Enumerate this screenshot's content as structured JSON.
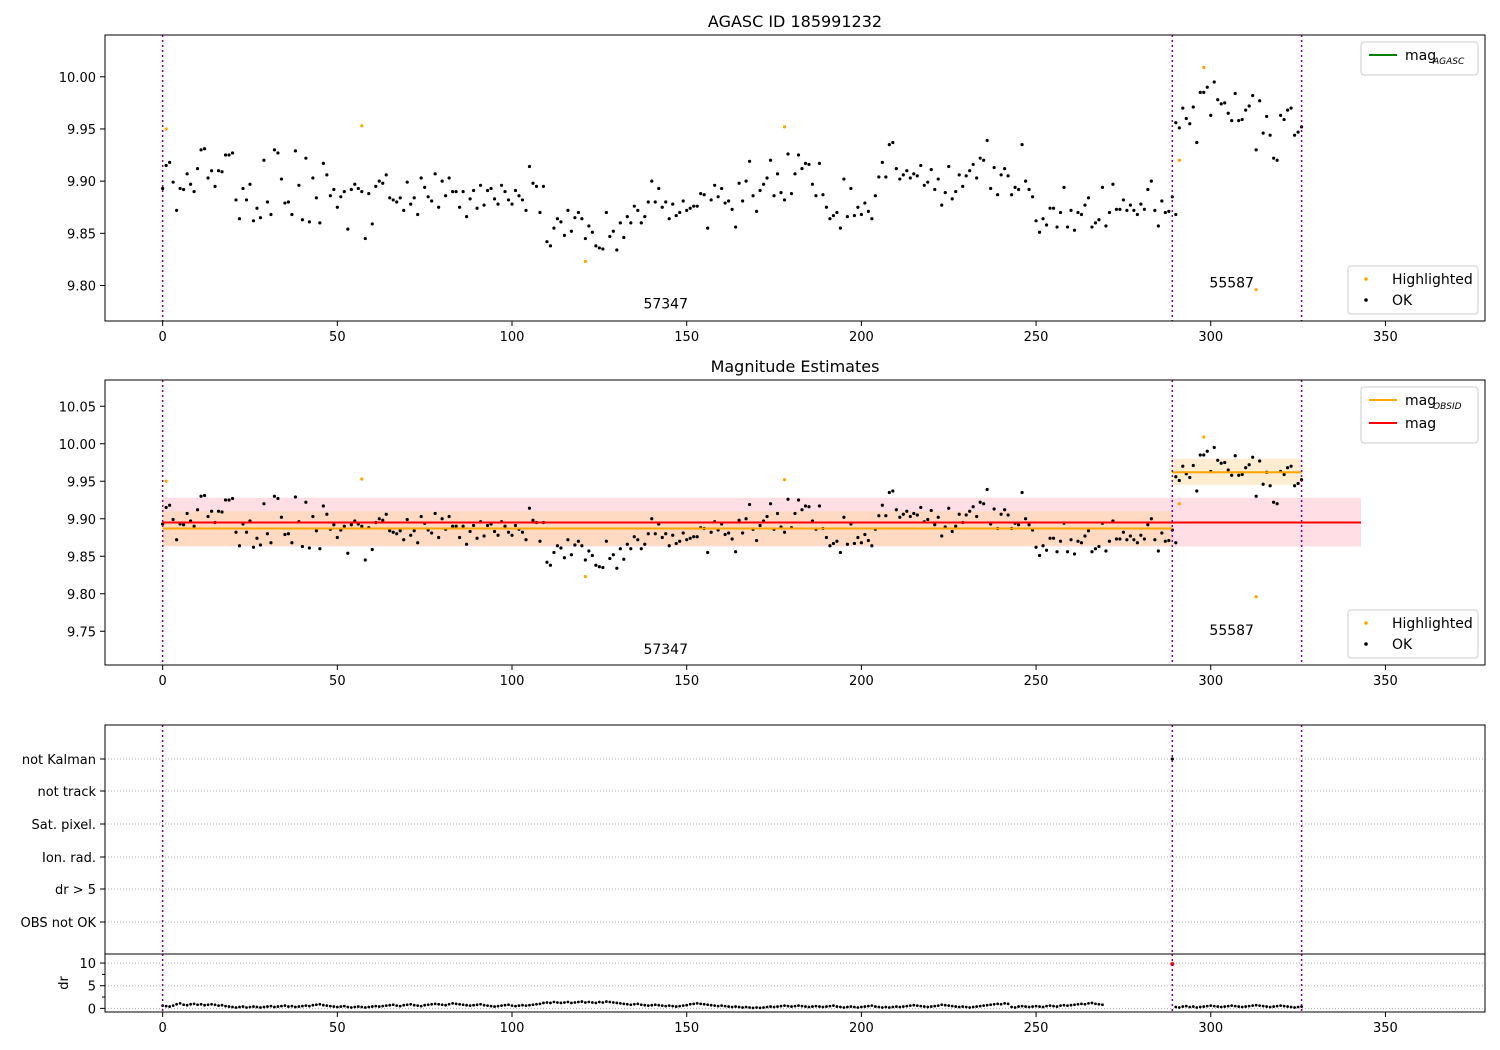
{
  "colors": {
    "ok": "#000000",
    "highlighted": "#ffa500",
    "mag_agasc": "#008000",
    "mag_obsid": "#ffa500",
    "mag": "#ff0000",
    "boundary": "#800080",
    "mag_band": "#ffc0cb",
    "obsid_band": "#ffd59a"
  },
  "chart_data": [
    {
      "type": "scatter",
      "title": "AGASC ID 185991232",
      "xlim": [
        -16.5,
        378.5
      ],
      "ylim": [
        9.766,
        10.04
      ],
      "xticks": [
        0,
        50,
        100,
        150,
        200,
        250,
        300,
        350
      ],
      "yticks": [
        "9.80",
        "9.85",
        "9.90",
        "9.95",
        "10.00"
      ],
      "obs_boundaries": [
        0,
        289,
        326
      ],
      "obs_labels": [
        {
          "text": "57347",
          "x": 144,
          "y": 9.778
        },
        {
          "text": "55587",
          "x": 306,
          "y": 9.798
        }
      ],
      "legend_upper": [
        {
          "label": "mag",
          "sub": "AGASC",
          "color": "mag_agasc"
        }
      ],
      "legend_lower": [
        {
          "label": "Highlighted",
          "color": "highlighted"
        },
        {
          "label": "OK",
          "color": "ok"
        }
      ],
      "series": [
        {
          "name": "OK",
          "values_ref": "obs1+obs2"
        },
        {
          "name": "Highlighted",
          "points": [
            [
              1,
              9.95
            ],
            [
              57,
              9.953
            ],
            [
              121,
              9.823
            ],
            [
              178,
              9.952
            ],
            [
              291,
              9.92
            ],
            [
              298,
              10.009
            ],
            [
              313,
              9.796
            ]
          ]
        }
      ]
    },
    {
      "type": "scatter",
      "title": "Magnitude Estimates",
      "xlim": [
        -16.5,
        378.5
      ],
      "ylim": [
        9.705,
        10.085
      ],
      "xticks": [
        0,
        50,
        100,
        150,
        200,
        250,
        300,
        350
      ],
      "yticks": [
        "9.75",
        "9.80",
        "9.85",
        "9.90",
        "9.95",
        "10.00",
        "10.05"
      ],
      "obs_boundaries": [
        0,
        289,
        326
      ],
      "obs_labels": [
        {
          "text": "57347",
          "x": 144,
          "y": 9.72
        },
        {
          "text": "55587",
          "x": 306,
          "y": 9.745
        }
      ],
      "mag": {
        "value": 9.895,
        "band": [
          9.863,
          9.928
        ],
        "x": [
          0,
          343
        ]
      },
      "mag_obsid": [
        {
          "x": [
            0,
            289
          ],
          "value": 9.887,
          "band": [
            9.864,
            9.91
          ]
        },
        {
          "x": [
            289,
            326
          ],
          "value": 9.962,
          "band": [
            9.945,
            9.98
          ]
        }
      ],
      "legend_upper": [
        {
          "label": "mag",
          "sub": "OBSID",
          "color": "mag_obsid"
        },
        {
          "label": "mag",
          "sub": "",
          "color": "mag"
        }
      ],
      "legend_lower": [
        {
          "label": "Highlighted",
          "color": "highlighted"
        },
        {
          "label": "OK",
          "color": "ok"
        }
      ]
    },
    {
      "type": "scatter",
      "title": "",
      "categories": [
        "not Kalman",
        "not track",
        "Sat. pixel.",
        "Ion. rad.",
        "dr > 5",
        "OBS not OK"
      ],
      "flagged": [
        {
          "category": "not Kalman",
          "x": 289
        }
      ],
      "xlim": [
        -16.5,
        378.5
      ]
    },
    {
      "type": "scatter",
      "title": "",
      "ylabel": "dr",
      "yticks": [
        "0",
        "5",
        "10"
      ],
      "ylim": [
        -0.8,
        12
      ],
      "xticks": [
        0,
        50,
        100,
        150,
        200,
        250,
        300,
        350
      ],
      "xlim": [
        -16.5,
        378.5
      ],
      "highlight_point": [
        289,
        9.8
      ]
    }
  ],
  "obs1": {
    "x_start": 0,
    "x_end": 288,
    "mag_seed": [
      9.893,
      9.915,
      9.918,
      9.899,
      9.872,
      9.893,
      9.892,
      9.907,
      9.897,
      9.89,
      9.912,
      9.93,
      9.931,
      9.903,
      9.91,
      9.895,
      9.91,
      9.909,
      9.925,
      9.925,
      9.927,
      9.882,
      9.864,
      9.893,
      9.882,
      9.897,
      9.862,
      9.874,
      9.865,
      9.92,
      9.88,
      9.868,
      9.93,
      9.927,
      9.902,
      9.879,
      9.88,
      9.868,
      9.929,
      9.896,
      9.863,
      9.922,
      9.861,
      9.903,
      9.884,
      9.86,
      9.917,
      9.906,
      9.886,
      9.892,
      9.875,
      9.885,
      9.89,
      9.854,
      9.892,
      9.897,
      9.893,
      9.89,
      9.845,
      9.888,
      9.859,
      9.895,
      9.9,
      9.898,
      9.906,
      9.884,
      9.882,
      9.88,
      9.884,
      9.872,
      9.899,
      9.878,
      9.884,
      9.868,
      9.903,
      9.894,
      9.885,
      9.881,
      9.907,
      9.875,
      9.9,
      9.886,
      9.903,
      9.89,
      9.89,
      9.875,
      9.89,
      9.866,
      9.883,
      9.891,
      9.874,
      9.896,
      9.877,
      9.891,
      9.893,
      9.883,
      9.878,
      9.896,
      9.89,
      9.882,
      9.878,
      9.891,
      9.886,
      9.882,
      9.872,
      9.914,
      9.898,
      9.895,
      9.87,
      9.895,
      9.842,
      9.838,
      9.855,
      9.864,
      9.861,
      9.848,
      9.872,
      9.852,
      9.865,
      9.87,
      9.864,
      9.845,
      9.857,
      9.851,
      9.838,
      9.836,
      9.835,
      9.87,
      9.847,
      9.852,
      9.834,
      9.86,
      9.846,
      9.866,
      9.86,
      9.876,
      9.872,
      9.86,
      9.866,
      9.88,
      9.9,
      9.88,
      9.893,
      9.875,
      9.88,
      9.864,
      9.878,
      9.867,
      9.87,
      9.881,
      9.872,
      9.874,
      9.876,
      9.876,
      9.888,
      9.887,
      9.855,
      9.882,
      9.896,
      9.885,
      9.893,
      9.879,
      9.881,
      9.873,
      9.856,
      9.898,
      9.881,
      9.9,
      9.919,
      9.886,
      9.871,
      9.891,
      9.897,
      9.903,
      9.92,
      9.886,
      9.907,
      9.889,
      9.882,
      9.926,
      9.888,
      9.907,
      9.925,
      9.912,
      9.917,
      9.916,
      9.897,
      9.886,
      9.917,
      9.887,
      9.875,
      9.864,
      9.867,
      9.87,
      9.855,
      9.902,
      9.866,
      9.893,
      9.867,
      9.875,
      9.868,
      9.879,
      9.871,
      9.864,
      9.886,
      9.904,
      9.918,
      9.904,
      9.935,
      9.937,
      9.912,
      9.902,
      9.906,
      9.91,
      9.903,
      9.907,
      9.905,
      9.915,
      9.896,
      9.899,
      9.911,
      9.892,
      9.902,
      9.877,
      9.889,
      9.914,
      9.883,
      9.89,
      9.906,
      9.895,
      9.905,
      9.91,
      9.916,
      9.903,
      9.922,
      9.92,
      9.939,
      9.893,
      9.913,
      9.887,
      9.906,
      9.912,
      9.905,
      9.887,
      9.894,
      9.892,
      9.935,
      9.9,
      9.892,
      9.885,
      9.862,
      9.851,
      9.864,
      9.858,
      9.874,
      9.874,
      9.856,
      9.87,
      9.894,
      9.856,
      9.872,
      9.853,
      9.87,
      9.868,
      9.877,
      9.884,
      9.856,
      9.86,
      9.863,
      9.894,
      9.857,
      9.87,
      9.897,
      9.873,
      9.873,
      9.882,
      9.872,
      9.877,
      9.872,
      9.868,
      9.878,
      9.873,
      9.892,
      9.9,
      9.872,
      9.857,
      9.881,
      9.87,
      9.871,
      9.885,
      9.868
    ]
  },
  "obs2": {
    "x_start": 290,
    "x_end": 326,
    "mag_seed": [
      9.956,
      9.951,
      9.97,
      9.96,
      9.955,
      9.971,
      9.937,
      9.985,
      9.985,
      9.99,
      9.963,
      9.995,
      9.978,
      9.974,
      9.975,
      9.965,
      9.958,
      9.984,
      9.958,
      9.959,
      9.968,
      9.972,
      9.982,
      9.93,
      9.977,
      9.946,
      9.962,
      9.944,
      9.922,
      9.92,
      9.963,
      9.959,
      9.968,
      9.97,
      9.944,
      9.947,
      9.952
    ]
  },
  "dr": {
    "obs1_seed": [
      0.6,
      0.5,
      0.4,
      0.6,
      0.9,
      1.1,
      0.8,
      0.7,
      0.9,
      1.0,
      0.8,
      0.9,
      0.7,
      0.8,
      0.9,
      0.8,
      0.6,
      0.7,
      0.5,
      0.4,
      0.3,
      0.2,
      0.3,
      0.4,
      0.2,
      0.3,
      0.4,
      0.3,
      0.2,
      0.3,
      0.4,
      0.5,
      0.3,
      0.4,
      0.5,
      0.6,
      0.4,
      0.5,
      0.3,
      0.4,
      0.5,
      0.6,
      0.5,
      0.7,
      0.8,
      0.9,
      0.7,
      0.6,
      0.5,
      0.4,
      0.3,
      0.4,
      0.5,
      0.3,
      0.2,
      0.3,
      0.4,
      0.3,
      0.2,
      0.3,
      0.4,
      0.5,
      0.4,
      0.5,
      0.6,
      0.7,
      0.8,
      0.6,
      0.5,
      0.7,
      0.8,
      0.9,
      0.7,
      0.6,
      0.5,
      0.7,
      0.8,
      0.9,
      1.0,
      0.9,
      0.8,
      0.7,
      0.9,
      1.1,
      1.0,
      0.9,
      0.8,
      0.7,
      0.6,
      0.7,
      0.8,
      0.9,
      0.7,
      0.6,
      0.5,
      0.4,
      0.5,
      0.6,
      0.7,
      0.8,
      0.6,
      0.5,
      0.6,
      0.7,
      0.6,
      0.7,
      0.8,
      0.9,
      1.0,
      1.2,
      1.3,
      1.2,
      1.4,
      1.3,
      1.2,
      1.3,
      1.4,
      1.2,
      1.3,
      1.4,
      1.5,
      1.3,
      1.4,
      1.3,
      1.2,
      1.4,
      1.3,
      1.5,
      1.4,
      1.3,
      1.2,
      1.1,
      1.0,
      0.9,
      0.8,
      0.9,
      1.0,
      0.8,
      0.7,
      0.6,
      0.7,
      0.8,
      0.7,
      0.6,
      0.5,
      0.6,
      0.5,
      0.4,
      0.5,
      0.6,
      0.7,
      0.9,
      1.0,
      1.1,
      1.0,
      0.9,
      0.8,
      0.7,
      0.6,
      0.5,
      0.6,
      0.5,
      0.4,
      0.3,
      0.4,
      0.3,
      0.2,
      0.3,
      0.2,
      0.1,
      0.2,
      0.1,
      0.2,
      0.3,
      0.4,
      0.3,
      0.4,
      0.5,
      0.6,
      0.5,
      0.4,
      0.5,
      0.6,
      0.5,
      0.4,
      0.3,
      0.4,
      0.5,
      0.4,
      0.3,
      0.4,
      0.5,
      0.6,
      0.4,
      0.3,
      0.2,
      0.3,
      0.4,
      0.3,
      0.2,
      0.3,
      0.4,
      0.5,
      0.6,
      0.4,
      0.3,
      0.2,
      0.3,
      0.2,
      0.3,
      0.4,
      0.3,
      0.4,
      0.5,
      0.6,
      0.7,
      0.6,
      0.5,
      0.4,
      0.3,
      0.4,
      0.5,
      0.6,
      0.8,
      0.7,
      0.6,
      0.5,
      0.4,
      0.3,
      0.4,
      0.3,
      0.2,
      0.3,
      0.4,
      0.5,
      0.6,
      0.7,
      0.8,
      0.9,
      1.0,
      0.9,
      1.1,
      1.0,
      0.3,
      0.2,
      0.4,
      0.5,
      0.4,
      0.3,
      0.4,
      0.5,
      0.4,
      0.3,
      0.5,
      0.6,
      0.5,
      0.4,
      0.6,
      0.7,
      0.6,
      0.7,
      0.8,
      0.9,
      1.0,
      0.9,
      1.1,
      1.2,
      1.0,
      0.9,
      0.8
    ],
    "obs2_seed": [
      0.3,
      0.2,
      0.4,
      0.5,
      0.3,
      0.4,
      0.2,
      0.3,
      0.4,
      0.5,
      0.6,
      0.5,
      0.4,
      0.3,
      0.4,
      0.5,
      0.6,
      0.5,
      0.4,
      0.3,
      0.4,
      0.5,
      0.6,
      0.7,
      0.6,
      0.5,
      0.4,
      0.3,
      0.4,
      0.5,
      0.6,
      0.5,
      0.4,
      0.3,
      0.2,
      0.3,
      0.4
    ]
  }
}
